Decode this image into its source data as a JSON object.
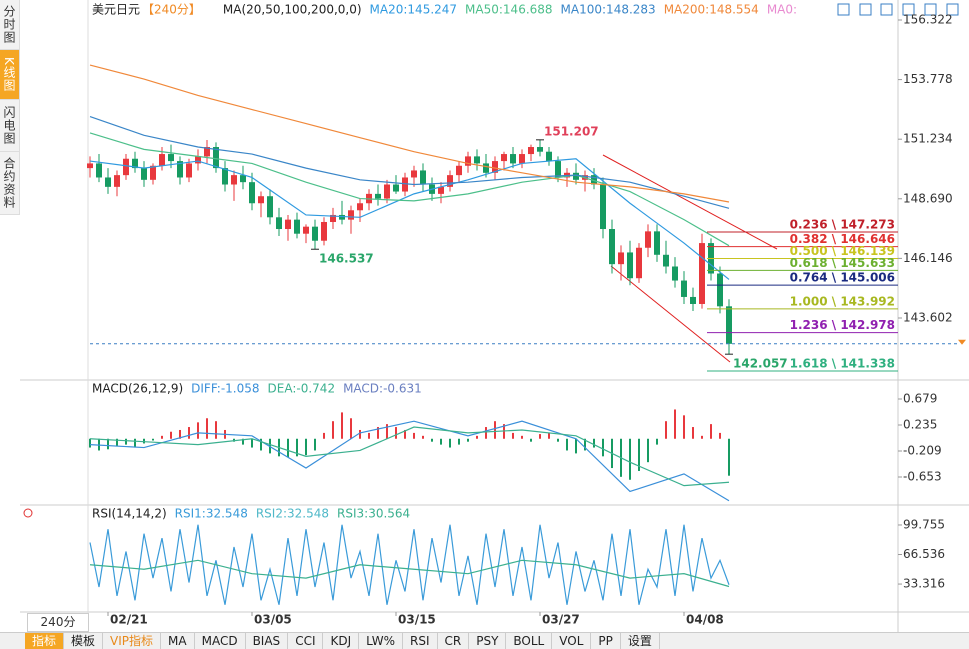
{
  "sidebar": {
    "tabs": [
      "分时图",
      "K线图",
      "闪电图",
      "合约资料"
    ]
  },
  "period_select": "240分",
  "toolbar": {
    "tabs": [
      "指标",
      "模板",
      "VIP指标",
      "MA",
      "MACD",
      "BIAS",
      "CCI",
      "KDJ",
      "LW%",
      "RSI",
      "CR",
      "PSY",
      "BOLL",
      "VOL",
      "PP",
      "设置"
    ]
  },
  "chart_data": [
    {
      "type": "candlestick",
      "title": "美元日元",
      "period": "【240分】",
      "ma_label": "MA(20,50,100,200,0,0)",
      "ma_extra": {
        "text": "MA0:",
        "color": "#e88ad0"
      },
      "up_color": "#e8383d",
      "down_color": "#169b62",
      "categories": [
        null,
        null,
        "02/21",
        null,
        null,
        null,
        null,
        null,
        null,
        null,
        null,
        null,
        null,
        null,
        null,
        null,
        null,
        null,
        "03/05",
        null,
        null,
        null,
        null,
        null,
        null,
        null,
        null,
        null,
        null,
        null,
        null,
        null,
        null,
        null,
        "03/15",
        null,
        null,
        null,
        null,
        null,
        null,
        null,
        null,
        null,
        null,
        null,
        null,
        null,
        null,
        null,
        "03/27",
        null,
        null,
        null,
        null,
        null,
        null,
        null,
        null,
        null,
        null,
        null,
        null,
        null,
        null,
        null,
        "04/08",
        null,
        null,
        null,
        null,
        null
      ],
      "ohlc": [
        [
          150.0,
          150.5,
          149.6,
          150.2
        ],
        [
          150.2,
          150.6,
          149.4,
          149.6
        ],
        [
          149.6,
          150.0,
          148.9,
          149.2
        ],
        [
          149.2,
          149.9,
          148.8,
          149.7
        ],
        [
          149.7,
          150.6,
          149.5,
          150.4
        ],
        [
          150.4,
          150.7,
          149.8,
          150.0
        ],
        [
          150.0,
          150.3,
          149.2,
          149.5
        ],
        [
          149.5,
          150.2,
          149.3,
          150.1
        ],
        [
          150.1,
          150.9,
          149.9,
          150.6
        ],
        [
          150.6,
          151.0,
          150.0,
          150.3
        ],
        [
          150.3,
          150.5,
          149.3,
          149.6
        ],
        [
          149.6,
          150.4,
          149.4,
          150.2
        ],
        [
          150.2,
          150.8,
          149.9,
          150.5
        ],
        [
          150.5,
          151.2,
          150.2,
          150.9
        ],
        [
          150.9,
          151.1,
          149.8,
          150.0
        ],
        [
          150.0,
          150.3,
          149.0,
          149.3
        ],
        [
          149.3,
          149.9,
          148.6,
          149.7
        ],
        [
          149.7,
          150.1,
          149.1,
          149.4
        ],
        [
          149.4,
          149.8,
          148.2,
          148.5
        ],
        [
          148.5,
          149.0,
          147.9,
          148.8
        ],
        [
          148.8,
          149.1,
          147.6,
          147.9
        ],
        [
          147.9,
          148.3,
          147.1,
          147.4
        ],
        [
          147.4,
          148.0,
          146.9,
          147.8
        ],
        [
          147.8,
          148.1,
          147.0,
          147.2
        ],
        [
          147.2,
          147.6,
          146.8,
          147.5
        ],
        [
          147.5,
          147.8,
          146.537,
          146.9
        ],
        [
          146.9,
          147.9,
          146.7,
          147.7
        ],
        [
          147.7,
          148.3,
          147.4,
          148.0
        ],
        [
          148.0,
          148.6,
          147.6,
          147.8
        ],
        [
          147.8,
          148.4,
          147.2,
          148.2
        ],
        [
          148.2,
          148.7,
          147.7,
          148.5
        ],
        [
          148.5,
          149.1,
          148.2,
          148.9
        ],
        [
          148.9,
          149.3,
          148.4,
          148.7
        ],
        [
          148.7,
          149.5,
          148.5,
          149.3
        ],
        [
          149.3,
          149.7,
          148.9,
          149.0
        ],
        [
          149.0,
          149.8,
          148.8,
          149.6
        ],
        [
          149.6,
          150.1,
          149.2,
          149.9
        ],
        [
          149.9,
          150.2,
          149.0,
          149.3
        ],
        [
          149.3,
          149.6,
          148.6,
          148.9
        ],
        [
          148.9,
          149.4,
          148.5,
          149.2
        ],
        [
          149.2,
          149.9,
          149.0,
          149.7
        ],
        [
          149.7,
          150.3,
          149.4,
          150.1
        ],
        [
          150.1,
          150.7,
          149.8,
          150.5
        ],
        [
          150.5,
          150.8,
          149.9,
          150.2
        ],
        [
          150.2,
          150.6,
          149.6,
          149.8
        ],
        [
          149.8,
          150.5,
          149.5,
          150.3
        ],
        [
          150.3,
          150.7,
          149.9,
          150.6
        ],
        [
          150.6,
          150.9,
          150.0,
          150.2
        ],
        [
          150.2,
          150.8,
          150.0,
          150.6
        ],
        [
          150.6,
          151.0,
          150.3,
          150.9
        ],
        [
          150.9,
          151.207,
          150.5,
          150.7
        ],
        [
          150.7,
          150.9,
          150.1,
          150.3
        ],
        [
          150.3,
          150.5,
          149.4,
          149.6
        ],
        [
          149.6,
          150.0,
          149.2,
          149.8
        ],
        [
          149.8,
          150.2,
          149.3,
          149.5
        ],
        [
          149.5,
          149.9,
          149.0,
          149.7
        ],
        [
          149.7,
          150.0,
          149.1,
          149.3
        ],
        [
          149.3,
          149.6,
          147.0,
          147.4
        ],
        [
          147.4,
          147.8,
          145.5,
          145.9
        ],
        [
          145.9,
          146.7,
          145.2,
          146.4
        ],
        [
          146.4,
          146.9,
          145.0,
          145.3
        ],
        [
          145.3,
          146.8,
          145.1,
          146.6
        ],
        [
          146.6,
          147.6,
          146.2,
          147.3
        ],
        [
          147.3,
          147.6,
          146.0,
          146.3
        ],
        [
          146.3,
          146.9,
          145.5,
          145.8
        ],
        [
          145.8,
          146.2,
          144.9,
          145.2
        ],
        [
          145.2,
          145.6,
          144.2,
          144.5
        ],
        [
          144.5,
          144.9,
          143.9,
          144.2
        ],
        [
          144.2,
          147.2,
          144.0,
          146.8
        ],
        [
          146.8,
          147.0,
          145.2,
          145.5
        ],
        [
          145.5,
          145.8,
          143.8,
          144.1
        ],
        [
          144.1,
          144.4,
          142.057,
          142.5
        ]
      ],
      "overlay_x": [
        0,
        6,
        12,
        18,
        24,
        30,
        36,
        42,
        48,
        54,
        60,
        66,
        71
      ],
      "overlays": [
        {
          "label": "MA20:145.247",
          "color": "#2f9ae0",
          "values": [
            150.3,
            150.0,
            150.3,
            149.6,
            148.0,
            147.9,
            148.9,
            149.5,
            150.2,
            150.4,
            148.5,
            146.8,
            145.247
          ]
        },
        {
          "label": "MA50:146.688",
          "color": "#4cbf8a",
          "values": [
            151.5,
            150.8,
            150.5,
            150.2,
            149.4,
            148.7,
            148.6,
            148.9,
            149.4,
            149.7,
            149.0,
            147.8,
            146.688
          ]
        },
        {
          "label": "MA100:148.283",
          "color": "#3a86c8",
          "values": [
            152.2,
            151.4,
            150.9,
            150.6,
            150.0,
            149.5,
            149.3,
            149.4,
            149.6,
            149.7,
            149.4,
            148.8,
            148.283
          ]
        },
        {
          "label": "MA200:148.554",
          "color": "#f0883a",
          "values": [
            154.4,
            153.8,
            153.1,
            152.5,
            151.9,
            151.3,
            150.7,
            150.2,
            149.8,
            149.4,
            149.2,
            148.9,
            148.554
          ]
        }
      ],
      "annotations": [
        {
          "index": 50,
          "value": 151.207,
          "color": "#e0405a",
          "pos": "above"
        },
        {
          "index": 25,
          "value": 146.537,
          "color": "#2aa66a",
          "pos": "below"
        },
        {
          "index": 71,
          "value": 142.057,
          "color": "#2aa66a",
          "pos": "below"
        }
      ],
      "fib_levels": [
        {
          "value": 147.273,
          "label": "0.236 \\ 147.273",
          "color": "#c0202a"
        },
        {
          "value": 146.646,
          "label": "0.382 \\ 146.646",
          "color": "#e03030"
        },
        {
          "value": 146.139,
          "label": "0.500 \\ 146.139",
          "color": "#c8c420"
        },
        {
          "value": 145.633,
          "label": "0.618 \\ 145.633",
          "color": "#6cb030"
        },
        {
          "value": 145.006,
          "label": "0.764 \\ 145.006",
          "color": "#1a2a80"
        },
        {
          "value": 143.992,
          "label": "1.000 \\ 143.992",
          "color": "#a8b820"
        },
        {
          "value": 142.978,
          "label": "1.236 \\ 142.978",
          "color": "#9020b0"
        },
        {
          "value": 141.338,
          "label": "1.618 \\ 141.338",
          "color": "#30b080"
        }
      ],
      "ylim": [
        140.955,
        156.749
      ],
      "yticks": [
        156.322,
        153.778,
        151.234,
        {
          "value": 148.69,
          "label": "148.690"
        },
        146.146,
        143.602
      ]
    },
    {
      "type": "macd",
      "title": "MACD(26,12,9)",
      "histogram": {
        "label": "MACD:-0.631",
        "color": "#6a7fc0",
        "values": [
          -0.15,
          -0.2,
          -0.18,
          -0.12,
          -0.1,
          -0.15,
          -0.08,
          -0.03,
          0.05,
          0.12,
          0.15,
          0.2,
          0.28,
          0.35,
          0.3,
          0.15,
          -0.05,
          -0.1,
          -0.15,
          -0.2,
          -0.25,
          -0.3,
          -0.32,
          -0.3,
          -0.28,
          -0.2,
          0.1,
          0.3,
          0.45,
          0.35,
          0.15,
          0.1,
          0.2,
          0.25,
          0.2,
          0.15,
          0.1,
          0.05,
          -0.05,
          -0.1,
          -0.15,
          -0.1,
          -0.05,
          0.05,
          0.2,
          0.3,
          0.25,
          0.1,
          0.05,
          -0.05,
          0.08,
          0.1,
          -0.05,
          -0.2,
          -0.25,
          -0.2,
          -0.15,
          -0.3,
          -0.5,
          -0.65,
          -0.7,
          -0.55,
          -0.4,
          -0.1,
          0.3,
          0.5,
          0.4,
          0.2,
          0.05,
          0.25,
          0.1,
          -0.631
        ]
      },
      "series": [
        {
          "label": "DIFF:-1.058",
          "color": "#3a8fd9",
          "values": [
            -0.1,
            -0.15,
            0.1,
            0.05,
            -0.5,
            0.1,
            0.3,
            0.05,
            0.3,
            0.0,
            -0.9,
            -0.6,
            -1.058
          ]
        },
        {
          "label": "DEA:-0.742",
          "color": "#3bb08f",
          "values": [
            0.0,
            -0.05,
            -0.1,
            0.0,
            -0.3,
            -0.2,
            0.2,
            0.1,
            0.15,
            0.05,
            -0.4,
            -0.8,
            -0.742
          ]
        }
      ],
      "ylim": [
        -1.131,
        0.952
      ],
      "yticks": [
        0.679,
        0.235,
        -0.209,
        -0.653
      ]
    },
    {
      "type": "rsi",
      "title": "RSI(14,14,2)",
      "series": [
        {
          "label": "RSI1:32.548",
          "color": "#3a9bd9",
          "values": [
            80,
            30,
            95,
            20,
            70,
            15,
            90,
            40,
            85,
            25,
            95,
            35,
            100,
            20,
            60,
            10,
            75,
            30,
            90,
            15,
            50,
            10,
            85,
            20,
            95,
            30,
            80,
            15,
            100,
            40,
            70,
            20,
            90,
            10,
            60,
            25,
            95,
            15,
            85,
            35,
            100,
            20,
            65,
            10,
            90,
            30,
            95,
            20,
            75,
            15,
            100,
            40,
            80,
            10,
            70,
            25,
            60,
            15,
            90,
            20,
            95,
            10,
            50,
            30,
            95,
            20,
            100,
            25,
            85,
            40,
            60,
            32.548
          ]
        },
        {
          "label": "RSI3:30.564",
          "color": "#3bb08f",
          "sparse": true,
          "values": [
            55,
            50,
            60,
            45,
            40,
            55,
            50,
            45,
            60,
            55,
            40,
            45,
            30.564
          ]
        }
      ],
      "extra_labels": [
        {
          "text": "RSI2:32.548",
          "color": "#4fb8c8"
        }
      ],
      "ylim": [
        1.89,
        116.6
      ],
      "yticks": [
        99.755,
        66.536,
        33.316
      ]
    }
  ]
}
